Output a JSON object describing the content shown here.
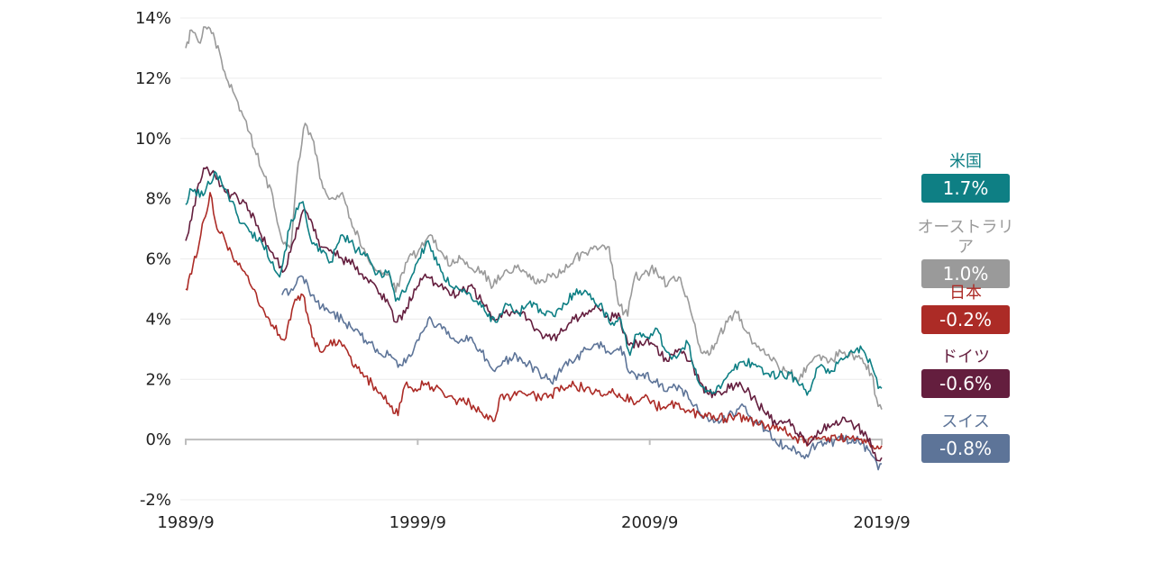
{
  "chart_data": {
    "type": "line",
    "x_tick_labels": [
      "1989/9",
      "1999/9",
      "2009/9",
      "2019/9"
    ],
    "y_tick_labels": [
      "-2%",
      "0%",
      "2%",
      "4%",
      "6%",
      "8%",
      "10%",
      "12%",
      "14%"
    ],
    "ylim": [
      -2,
      14
    ],
    "xlim": [
      1989.75,
      2019.75
    ],
    "grid": true,
    "legend_placement": "right",
    "series": [
      {
        "name": "米国",
        "value_label": "1.7%",
        "color": "#0e7f84",
        "x": [
          1989.75,
          1990.0,
          1990.5,
          1991.0,
          1991.5,
          1992.0,
          1992.5,
          1993.0,
          1993.5,
          1993.8,
          1994.3,
          1994.8,
          1995.2,
          1995.6,
          1996.0,
          1996.5,
          1997.0,
          1997.5,
          1998.0,
          1998.5,
          1998.8,
          1999.3,
          1999.8,
          2000.2,
          2000.6,
          2000.9,
          2001.4,
          2001.8,
          2002.3,
          2002.7,
          2003.1,
          2003.6,
          2004.1,
          2004.6,
          2005.1,
          2005.6,
          2006.1,
          2006.6,
          2007.1,
          2007.6,
          2008.0,
          2008.5,
          2008.9,
          2009.2,
          2009.6,
          2010.0,
          2010.5,
          2010.9,
          2011.4,
          2011.8,
          2012.3,
          2012.8,
          2013.3,
          2013.8,
          2014.3,
          2014.8,
          2015.3,
          2015.8,
          2016.2,
          2016.6,
          2017.0,
          2017.5,
          2018.0,
          2018.5,
          2018.9,
          2019.3,
          2019.6,
          2019.75
        ],
        "y": [
          7.8,
          8.3,
          8.1,
          8.9,
          8.3,
          7.4,
          6.9,
          6.6,
          5.9,
          5.4,
          7.3,
          7.9,
          6.5,
          6.2,
          5.9,
          6.8,
          6.4,
          6.1,
          5.5,
          5.6,
          4.6,
          5.1,
          6.0,
          6.6,
          5.8,
          5.3,
          5.1,
          4.9,
          4.6,
          4.2,
          3.9,
          4.5,
          4.2,
          4.6,
          4.2,
          4.1,
          4.5,
          5.0,
          4.8,
          4.5,
          3.9,
          4.0,
          2.8,
          3.5,
          3.4,
          3.7,
          2.9,
          2.7,
          3.2,
          2.0,
          1.6,
          1.7,
          2.3,
          2.6,
          2.5,
          2.2,
          2.1,
          2.2,
          1.8,
          1.6,
          2.4,
          2.2,
          2.7,
          2.9,
          3.0,
          2.5,
          1.7,
          1.7
        ]
      },
      {
        "name": "オーストラリア",
        "value_label": "1.0%",
        "color": "#9a9a9a",
        "x": [
          1989.75,
          1990.0,
          1990.3,
          1990.6,
          1991.0,
          1991.5,
          1992.0,
          1992.5,
          1993.0,
          1993.5,
          1993.9,
          1994.3,
          1994.6,
          1994.9,
          1995.2,
          1995.6,
          1996.0,
          1996.5,
          1997.0,
          1997.5,
          1998.0,
          1998.5,
          1998.8,
          1999.3,
          1999.8,
          2000.3,
          2000.8,
          2001.2,
          2001.6,
          2002.0,
          2002.5,
          2003.0,
          2003.5,
          2004.0,
          2004.5,
          2005.0,
          2005.5,
          2006.0,
          2006.5,
          2007.0,
          2007.5,
          2008.0,
          2008.4,
          2008.8,
          2009.1,
          2009.5,
          2010.0,
          2010.5,
          2011.0,
          2011.5,
          2011.9,
          2012.3,
          2012.7,
          2013.1,
          2013.5,
          2013.9,
          2014.3,
          2014.8,
          2015.3,
          2015.8,
          2016.2,
          2016.6,
          2017.0,
          2017.5,
          2018.0,
          2018.5,
          2018.9,
          2019.3,
          2019.6,
          2019.75
        ],
        "y": [
          13.0,
          13.6,
          13.2,
          13.7,
          13.3,
          12.0,
          11.2,
          10.2,
          9.0,
          8.1,
          6.6,
          6.5,
          9.2,
          10.5,
          10.0,
          8.6,
          8.0,
          8.2,
          7.0,
          6.2,
          5.6,
          5.5,
          4.9,
          5.9,
          6.3,
          6.8,
          6.2,
          5.8,
          6.0,
          5.7,
          5.6,
          5.1,
          5.6,
          5.7,
          5.4,
          5.2,
          5.4,
          5.6,
          6.0,
          6.2,
          6.3,
          6.4,
          4.5,
          4.1,
          5.4,
          5.5,
          5.7,
          5.1,
          5.4,
          4.3,
          3.1,
          2.8,
          3.4,
          3.9,
          4.2,
          3.6,
          3.2,
          2.8,
          2.4,
          2.2,
          2.0,
          2.5,
          2.8,
          2.6,
          2.9,
          2.8,
          2.7,
          2.2,
          1.1,
          1.0
        ]
      },
      {
        "name": "日本",
        "value_label": "-0.2%",
        "color": "#ac2b26",
        "x": [
          1989.75,
          1990.0,
          1990.4,
          1990.8,
          1991.1,
          1991.5,
          1992.0,
          1992.5,
          1993.0,
          1993.5,
          1994.0,
          1994.4,
          1994.8,
          1995.2,
          1995.6,
          1996.0,
          1996.5,
          1997.0,
          1997.5,
          1998.0,
          1998.5,
          1998.9,
          1999.2,
          1999.5,
          2000.0,
          2000.5,
          2001.0,
          2001.5,
          2002.0,
          2002.5,
          2003.0,
          2003.4,
          2003.8,
          2004.2,
          2004.6,
          2005.0,
          2005.5,
          2006.0,
          2006.5,
          2007.0,
          2007.5,
          2008.0,
          2008.5,
          2009.0,
          2009.5,
          2010.0,
          2010.5,
          2011.0,
          2011.5,
          2012.0,
          2012.5,
          2013.0,
          2013.5,
          2014.0,
          2014.5,
          2015.0,
          2015.5,
          2016.0,
          2016.4,
          2016.8,
          2017.3,
          2017.8,
          2018.3,
          2018.8,
          2019.2,
          2019.5,
          2019.75
        ],
        "y": [
          5.0,
          5.5,
          6.8,
          8.2,
          7.0,
          6.5,
          5.8,
          5.2,
          4.4,
          3.8,
          3.3,
          4.5,
          4.8,
          3.4,
          2.9,
          3.3,
          3.1,
          2.4,
          2.1,
          1.6,
          1.2,
          0.8,
          1.8,
          1.7,
          1.8,
          1.7,
          1.4,
          1.3,
          1.2,
          0.9,
          0.6,
          1.5,
          1.4,
          1.6,
          1.5,
          1.4,
          1.5,
          1.7,
          1.8,
          1.7,
          1.6,
          1.6,
          1.4,
          1.3,
          1.4,
          1.1,
          1.1,
          1.2,
          0.9,
          0.8,
          0.8,
          0.7,
          0.8,
          0.6,
          0.5,
          0.4,
          0.3,
          0.1,
          -0.1,
          0.0,
          0.1,
          0.0,
          0.1,
          0.0,
          -0.1,
          -0.3,
          -0.2
        ]
      },
      {
        "name": "ドイツ",
        "value_label": "-0.6%",
        "color": "#641e3e",
        "x": [
          1989.75,
          1990.0,
          1990.3,
          1990.6,
          1991.0,
          1991.5,
          1992.0,
          1992.5,
          1993.0,
          1993.5,
          1994.0,
          1994.4,
          1994.8,
          1995.2,
          1995.6,
          1996.0,
          1996.5,
          1997.0,
          1997.5,
          1998.0,
          1998.5,
          1998.8,
          1999.2,
          1999.6,
          2000.0,
          2000.5,
          2001.0,
          2001.5,
          2002.0,
          2002.5,
          2003.0,
          2003.5,
          2004.0,
          2004.5,
          2005.0,
          2005.5,
          2006.0,
          2006.5,
          2007.0,
          2007.5,
          2008.0,
          2008.4,
          2008.8,
          2009.2,
          2009.6,
          2010.0,
          2010.5,
          2011.0,
          2011.5,
          2011.9,
          2012.3,
          2012.7,
          2013.2,
          2013.7,
          2014.2,
          2014.7,
          2015.2,
          2015.7,
          2016.1,
          2016.5,
          2017.0,
          2017.5,
          2018.0,
          2018.5,
          2018.9,
          2019.3,
          2019.6,
          2019.75
        ],
        "y": [
          6.6,
          7.3,
          8.5,
          9.0,
          8.8,
          8.2,
          8.0,
          7.6,
          6.8,
          6.2,
          5.6,
          6.6,
          7.6,
          7.2,
          6.4,
          6.3,
          6.0,
          5.8,
          5.4,
          5.0,
          4.5,
          3.9,
          4.2,
          5.0,
          5.4,
          5.2,
          5.0,
          4.8,
          5.1,
          4.6,
          4.0,
          4.2,
          4.3,
          4.0,
          3.6,
          3.3,
          3.6,
          4.0,
          4.2,
          4.4,
          4.0,
          4.2,
          3.2,
          3.2,
          3.3,
          3.1,
          2.6,
          3.0,
          2.6,
          1.9,
          1.5,
          1.6,
          1.7,
          1.8,
          1.4,
          0.9,
          0.5,
          0.6,
          0.2,
          -0.1,
          0.3,
          0.4,
          0.6,
          0.5,
          0.3,
          -0.2,
          -0.7,
          -0.6
        ]
      },
      {
        "name": "スイス",
        "value_label": "-0.8%",
        "color": "#5d7498",
        "x": [
          1993.9,
          1994.3,
          1994.8,
          1995.2,
          1995.6,
          1996.0,
          1996.5,
          1997.0,
          1997.5,
          1998.0,
          1998.5,
          1998.9,
          1999.3,
          1999.8,
          2000.2,
          2000.6,
          2001.0,
          2001.5,
          2002.0,
          2002.5,
          2003.0,
          2003.5,
          2004.0,
          2004.5,
          2005.0,
          2005.5,
          2006.0,
          2006.5,
          2007.0,
          2007.5,
          2008.0,
          2008.5,
          2008.9,
          2009.2,
          2009.6,
          2010.0,
          2010.5,
          2011.0,
          2011.5,
          2011.9,
          2012.3,
          2012.8,
          2013.3,
          2013.8,
          2014.3,
          2014.8,
          2015.2,
          2015.6,
          2016.0,
          2016.5,
          2017.0,
          2017.5,
          2018.0,
          2018.5,
          2018.9,
          2019.3,
          2019.6,
          2019.75
        ],
        "y": [
          4.8,
          5.0,
          5.4,
          4.8,
          4.4,
          4.2,
          4.0,
          3.6,
          3.3,
          3.0,
          2.8,
          2.4,
          2.7,
          3.3,
          4.0,
          3.8,
          3.5,
          3.2,
          3.4,
          2.9,
          2.3,
          2.6,
          2.8,
          2.5,
          2.2,
          1.9,
          2.4,
          2.6,
          3.0,
          3.2,
          2.9,
          3.1,
          2.2,
          2.0,
          2.2,
          1.9,
          1.6,
          1.8,
          1.3,
          0.9,
          0.6,
          0.6,
          0.9,
          1.1,
          0.6,
          0.3,
          -0.1,
          -0.2,
          -0.3,
          -0.5,
          -0.1,
          -0.1,
          0.0,
          0.0,
          -0.1,
          -0.5,
          -1.0,
          -0.8
        ]
      }
    ]
  }
}
